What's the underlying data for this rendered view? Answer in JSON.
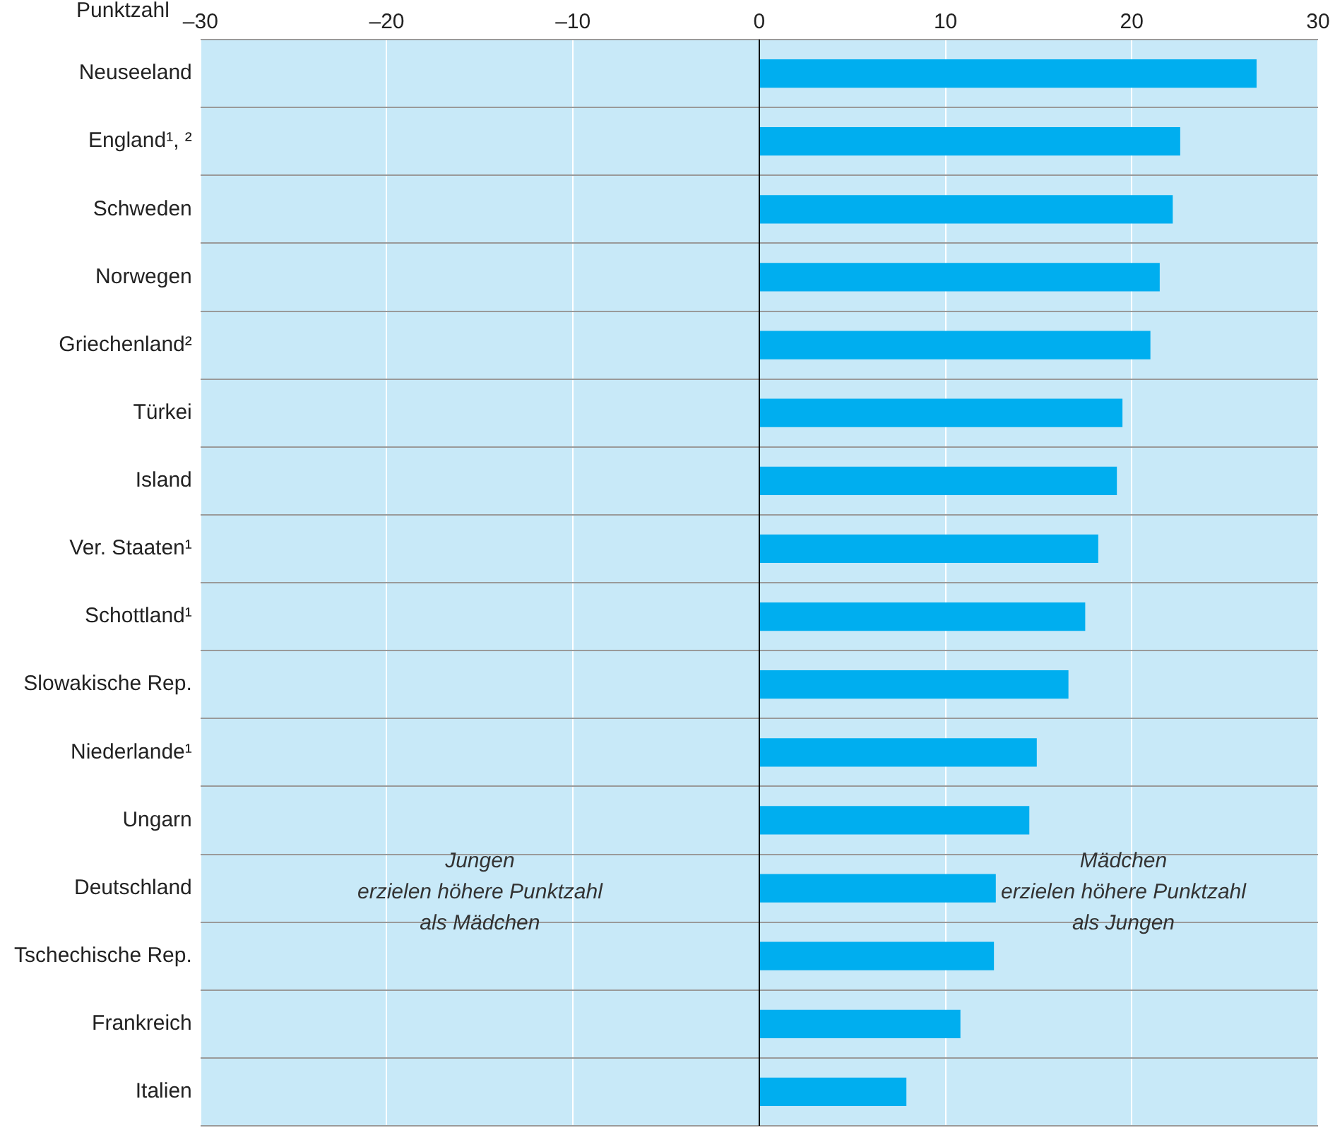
{
  "chart_data": {
    "type": "bar",
    "orientation": "horizontal",
    "xlabel": "Punktzahl",
    "categories": [
      "Neuseeland",
      "England¹, ²",
      "Schweden",
      "Norwegen",
      "Griechenland²",
      "Türkei",
      "Island",
      "Ver. Staaten¹",
      "Schottland¹",
      "Slowakische Rep.",
      "Niederlande¹",
      "Ungarn",
      "Deutschland",
      "Tschechische Rep.",
      "Frankreich",
      "Italien"
    ],
    "values": [
      26.7,
      22.6,
      22.2,
      21.5,
      21.0,
      19.5,
      19.2,
      18.2,
      17.5,
      16.6,
      14.9,
      14.5,
      12.7,
      12.6,
      10.8,
      7.9
    ],
    "color": "#00aeef",
    "xlim": [
      -30,
      30
    ],
    "xticks": [
      {
        "value": -30,
        "label": "–30"
      },
      {
        "value": -20,
        "label": "–20"
      },
      {
        "value": -10,
        "label": "–10"
      },
      0,
      10,
      20,
      30
    ],
    "grid": true,
    "annotations": [
      "Jungen\nerzielen höhere Punktzahl\nals Mädchen",
      "Mädchen\nerzielen höhere Punktzahl\nals Jungen"
    ]
  }
}
